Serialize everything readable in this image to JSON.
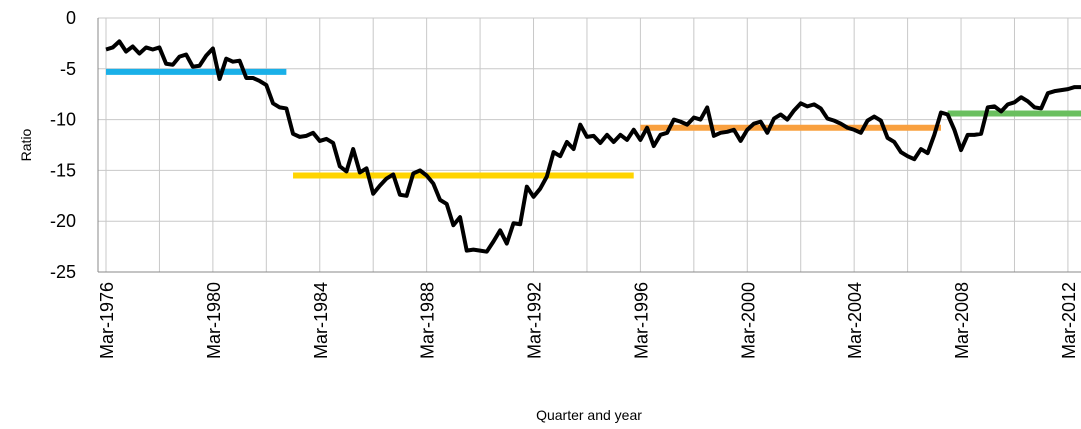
{
  "chart_data": {
    "type": "line",
    "xlabel": "Quarter and year",
    "ylabel": "Ratio",
    "categories": [
      "Mar-1976",
      null,
      null,
      null,
      null,
      null,
      null,
      null,
      null,
      null,
      null,
      null,
      null,
      null,
      null,
      null,
      "Mar-1980",
      null,
      null,
      null,
      null,
      null,
      null,
      null,
      null,
      null,
      null,
      null,
      null,
      null,
      null,
      null,
      "Mar-1984",
      null,
      null,
      null,
      null,
      null,
      null,
      null,
      null,
      null,
      null,
      null,
      null,
      null,
      null,
      null,
      "Mar-1988",
      null,
      null,
      null,
      null,
      null,
      null,
      null,
      null,
      null,
      null,
      null,
      null,
      null,
      null,
      null,
      "Mar-1992",
      null,
      null,
      null,
      null,
      null,
      null,
      null,
      null,
      null,
      null,
      null,
      null,
      null,
      null,
      null,
      "Mar-1996",
      null,
      null,
      null,
      null,
      null,
      null,
      null,
      null,
      null,
      null,
      null,
      null,
      null,
      null,
      null,
      "Mar-2000",
      null,
      null,
      null,
      null,
      null,
      null,
      null,
      null,
      null,
      null,
      null,
      null,
      null,
      null,
      null,
      "Mar-2004",
      null,
      null,
      null,
      null,
      null,
      null,
      null,
      null,
      null,
      null,
      null,
      null,
      null,
      null,
      null,
      "Mar-2008",
      null,
      null,
      null,
      null,
      null,
      null,
      null,
      null,
      null,
      null,
      null,
      null,
      null,
      null,
      null,
      "Mar-2012",
      null,
      null
    ],
    "series": [
      {
        "color": "#000000",
        "width": 4,
        "values": [
          -3.1,
          -2.9,
          -2.3,
          -3.3,
          -2.8,
          -3.5,
          -2.9,
          -3.1,
          -2.9,
          -4.5,
          -4.6,
          -3.8,
          -3.6,
          -4.8,
          -4.7,
          -3.7,
          -3.0,
          -6.0,
          -4.0,
          -4.3,
          -4.2,
          -5.9,
          -5.9,
          -6.2,
          -6.6,
          -8.4,
          -8.8,
          -8.9,
          -11.4,
          -11.7,
          -11.6,
          -11.3,
          -12.1,
          -11.9,
          -12.3,
          -14.6,
          -15.1,
          -12.9,
          -15.2,
          -14.8,
          -17.3,
          -16.5,
          -15.8,
          -15.4,
          -17.4,
          -17.5,
          -15.3,
          -15.0,
          -15.5,
          -16.3,
          -17.9,
          -18.3,
          -20.4,
          -19.6,
          -22.9,
          -22.8,
          -22.9,
          -23.0,
          -22.0,
          -20.9,
          -22.2,
          -20.2,
          -20.3,
          -16.6,
          -17.6,
          -16.8,
          -15.6,
          -13.2,
          -13.6,
          -12.2,
          -12.9,
          -10.5,
          -11.7,
          -11.6,
          -12.3,
          -11.5,
          -12.2,
          -11.5,
          -12.0,
          -11.0,
          -12.0,
          -10.8,
          -12.6,
          -11.5,
          -11.3,
          -10.0,
          -10.2,
          -10.5,
          -9.8,
          -10.0,
          -8.8,
          -11.6,
          -11.3,
          -11.2,
          -11.0,
          -12.1,
          -11.0,
          -10.4,
          -10.2,
          -11.3,
          -9.9,
          -9.5,
          -10.0,
          -9.1,
          -8.4,
          -8.7,
          -8.5,
          -8.9,
          -9.9,
          -10.1,
          -10.4,
          -10.8,
          -11.0,
          -11.3,
          -10.1,
          -9.7,
          -10.1,
          -11.8,
          -12.2,
          -13.2,
          -13.6,
          -13.9,
          -12.9,
          -13.3,
          -11.5,
          -9.3,
          -9.5,
          -11.0,
          -13.0,
          -11.5,
          -11.5,
          -11.4,
          -8.8,
          -8.7,
          -9.2,
          -8.5,
          -8.3,
          -7.8,
          -8.2,
          -8.8,
          -8.9,
          -7.4,
          -7.2,
          -7.1,
          -7.0,
          -6.8,
          -6.8
        ]
      },
      {
        "color": "#1ab0e8",
        "width": 6,
        "values": [
          -5.3,
          -5.3,
          -5.3,
          -5.3,
          -5.3,
          -5.3,
          -5.3,
          -5.3,
          -5.3,
          -5.3,
          -5.3,
          -5.3,
          -5.3,
          -5.3,
          -5.3,
          -5.3,
          -5.3,
          -5.3,
          -5.3,
          -5.3,
          -5.3,
          -5.3,
          -5.3,
          -5.3,
          -5.3,
          -5.3,
          -5.3,
          -5.3,
          null,
          null,
          null,
          null,
          null,
          null,
          null,
          null,
          null,
          null,
          null,
          null,
          null,
          null,
          null,
          null,
          null,
          null,
          null,
          null,
          null,
          null,
          null,
          null,
          null,
          null,
          null,
          null,
          null,
          null,
          null,
          null,
          null,
          null,
          null,
          null,
          null,
          null,
          null,
          null,
          null,
          null,
          null,
          null,
          null,
          null,
          null,
          null,
          null,
          null,
          null,
          null,
          null,
          null,
          null,
          null,
          null,
          null,
          null,
          null,
          null,
          null,
          null,
          null,
          null,
          null,
          null,
          null,
          null,
          null,
          null,
          null,
          null,
          null,
          null,
          null,
          null,
          null,
          null,
          null,
          null,
          null,
          null,
          null,
          null,
          null,
          null,
          null,
          null,
          null,
          null,
          null,
          null,
          null,
          null,
          null,
          null,
          null,
          null,
          null,
          null,
          null,
          null,
          null,
          null,
          null,
          null,
          null,
          null,
          null,
          null,
          null,
          null,
          null,
          null,
          null,
          null,
          null,
          null
        ]
      },
      {
        "color": "#ffd400",
        "width": 6,
        "values": [
          null,
          null,
          null,
          null,
          null,
          null,
          null,
          null,
          null,
          null,
          null,
          null,
          null,
          null,
          null,
          null,
          null,
          null,
          null,
          null,
          null,
          null,
          null,
          null,
          null,
          null,
          null,
          null,
          -15.5,
          -15.5,
          -15.5,
          -15.5,
          -15.5,
          -15.5,
          -15.5,
          -15.5,
          -15.5,
          -15.5,
          -15.5,
          -15.5,
          -15.5,
          -15.5,
          -15.5,
          -15.5,
          -15.5,
          -15.5,
          -15.5,
          -15.5,
          -15.5,
          -15.5,
          -15.5,
          -15.5,
          -15.5,
          -15.5,
          -15.5,
          -15.5,
          -15.5,
          -15.5,
          -15.5,
          -15.5,
          -15.5,
          -15.5,
          -15.5,
          -15.5,
          -15.5,
          -15.5,
          -15.5,
          -15.5,
          -15.5,
          -15.5,
          -15.5,
          -15.5,
          -15.5,
          -15.5,
          -15.5,
          -15.5,
          -15.5,
          -15.5,
          -15.5,
          -15.5,
          null,
          null,
          null,
          null,
          null,
          null,
          null,
          null,
          null,
          null,
          null,
          null,
          null,
          null,
          null,
          null,
          null,
          null,
          null,
          null,
          null,
          null,
          null,
          null,
          null,
          null,
          null,
          null,
          null,
          null,
          null,
          null,
          null,
          null,
          null,
          null,
          null,
          null,
          null,
          null,
          null,
          null,
          null,
          null,
          null,
          null,
          null,
          null,
          null,
          null,
          null,
          null,
          null,
          null,
          null,
          null,
          null,
          null,
          null,
          null,
          null,
          null,
          null,
          null,
          null,
          null,
          null
        ]
      },
      {
        "color": "#f9a03f",
        "width": 6,
        "values": [
          null,
          null,
          null,
          null,
          null,
          null,
          null,
          null,
          null,
          null,
          null,
          null,
          null,
          null,
          null,
          null,
          null,
          null,
          null,
          null,
          null,
          null,
          null,
          null,
          null,
          null,
          null,
          null,
          null,
          null,
          null,
          null,
          null,
          null,
          null,
          null,
          null,
          null,
          null,
          null,
          null,
          null,
          null,
          null,
          null,
          null,
          null,
          null,
          null,
          null,
          null,
          null,
          null,
          null,
          null,
          null,
          null,
          null,
          null,
          null,
          null,
          null,
          null,
          null,
          null,
          null,
          null,
          null,
          null,
          null,
          null,
          null,
          null,
          null,
          null,
          null,
          null,
          null,
          null,
          null,
          -10.8,
          -10.8,
          -10.8,
          -10.8,
          -10.8,
          -10.8,
          -10.8,
          -10.8,
          -10.8,
          -10.8,
          -10.8,
          -10.8,
          -10.8,
          -10.8,
          -10.8,
          -10.8,
          -10.8,
          -10.8,
          -10.8,
          -10.8,
          -10.8,
          -10.8,
          -10.8,
          -10.8,
          -10.8,
          -10.8,
          -10.8,
          -10.8,
          -10.8,
          -10.8,
          -10.8,
          -10.8,
          -10.8,
          -10.8,
          -10.8,
          -10.8,
          -10.8,
          -10.8,
          -10.8,
          -10.8,
          -10.8,
          -10.8,
          -10.8,
          -10.8,
          -10.8,
          -10.8,
          null,
          null,
          null,
          null,
          null,
          null,
          null,
          null,
          null,
          null,
          null,
          null,
          null,
          null,
          null,
          null,
          null,
          null,
          null,
          null,
          null
        ]
      },
      {
        "color": "#6abf5f",
        "width": 6,
        "values": [
          null,
          null,
          null,
          null,
          null,
          null,
          null,
          null,
          null,
          null,
          null,
          null,
          null,
          null,
          null,
          null,
          null,
          null,
          null,
          null,
          null,
          null,
          null,
          null,
          null,
          null,
          null,
          null,
          null,
          null,
          null,
          null,
          null,
          null,
          null,
          null,
          null,
          null,
          null,
          null,
          null,
          null,
          null,
          null,
          null,
          null,
          null,
          null,
          null,
          null,
          null,
          null,
          null,
          null,
          null,
          null,
          null,
          null,
          null,
          null,
          null,
          null,
          null,
          null,
          null,
          null,
          null,
          null,
          null,
          null,
          null,
          null,
          null,
          null,
          null,
          null,
          null,
          null,
          null,
          null,
          null,
          null,
          null,
          null,
          null,
          null,
          null,
          null,
          null,
          null,
          null,
          null,
          null,
          null,
          null,
          null,
          null,
          null,
          null,
          null,
          null,
          null,
          null,
          null,
          null,
          null,
          null,
          null,
          null,
          null,
          null,
          null,
          null,
          null,
          null,
          null,
          null,
          null,
          null,
          null,
          null,
          null,
          null,
          null,
          null,
          null,
          -9.4,
          -9.4,
          -9.4,
          -9.4,
          -9.4,
          -9.4,
          -9.4,
          -9.4,
          -9.4,
          -9.4,
          -9.4,
          -9.4,
          -9.4,
          -9.4,
          -9.4,
          -9.4,
          -9.4,
          -9.4,
          -9.4,
          -9.4,
          -9.4
        ]
      }
    ],
    "ylim": [
      -25,
      0
    ],
    "yticks": [
      0,
      -5,
      -10,
      -15,
      -20,
      -25
    ],
    "grid": true
  }
}
